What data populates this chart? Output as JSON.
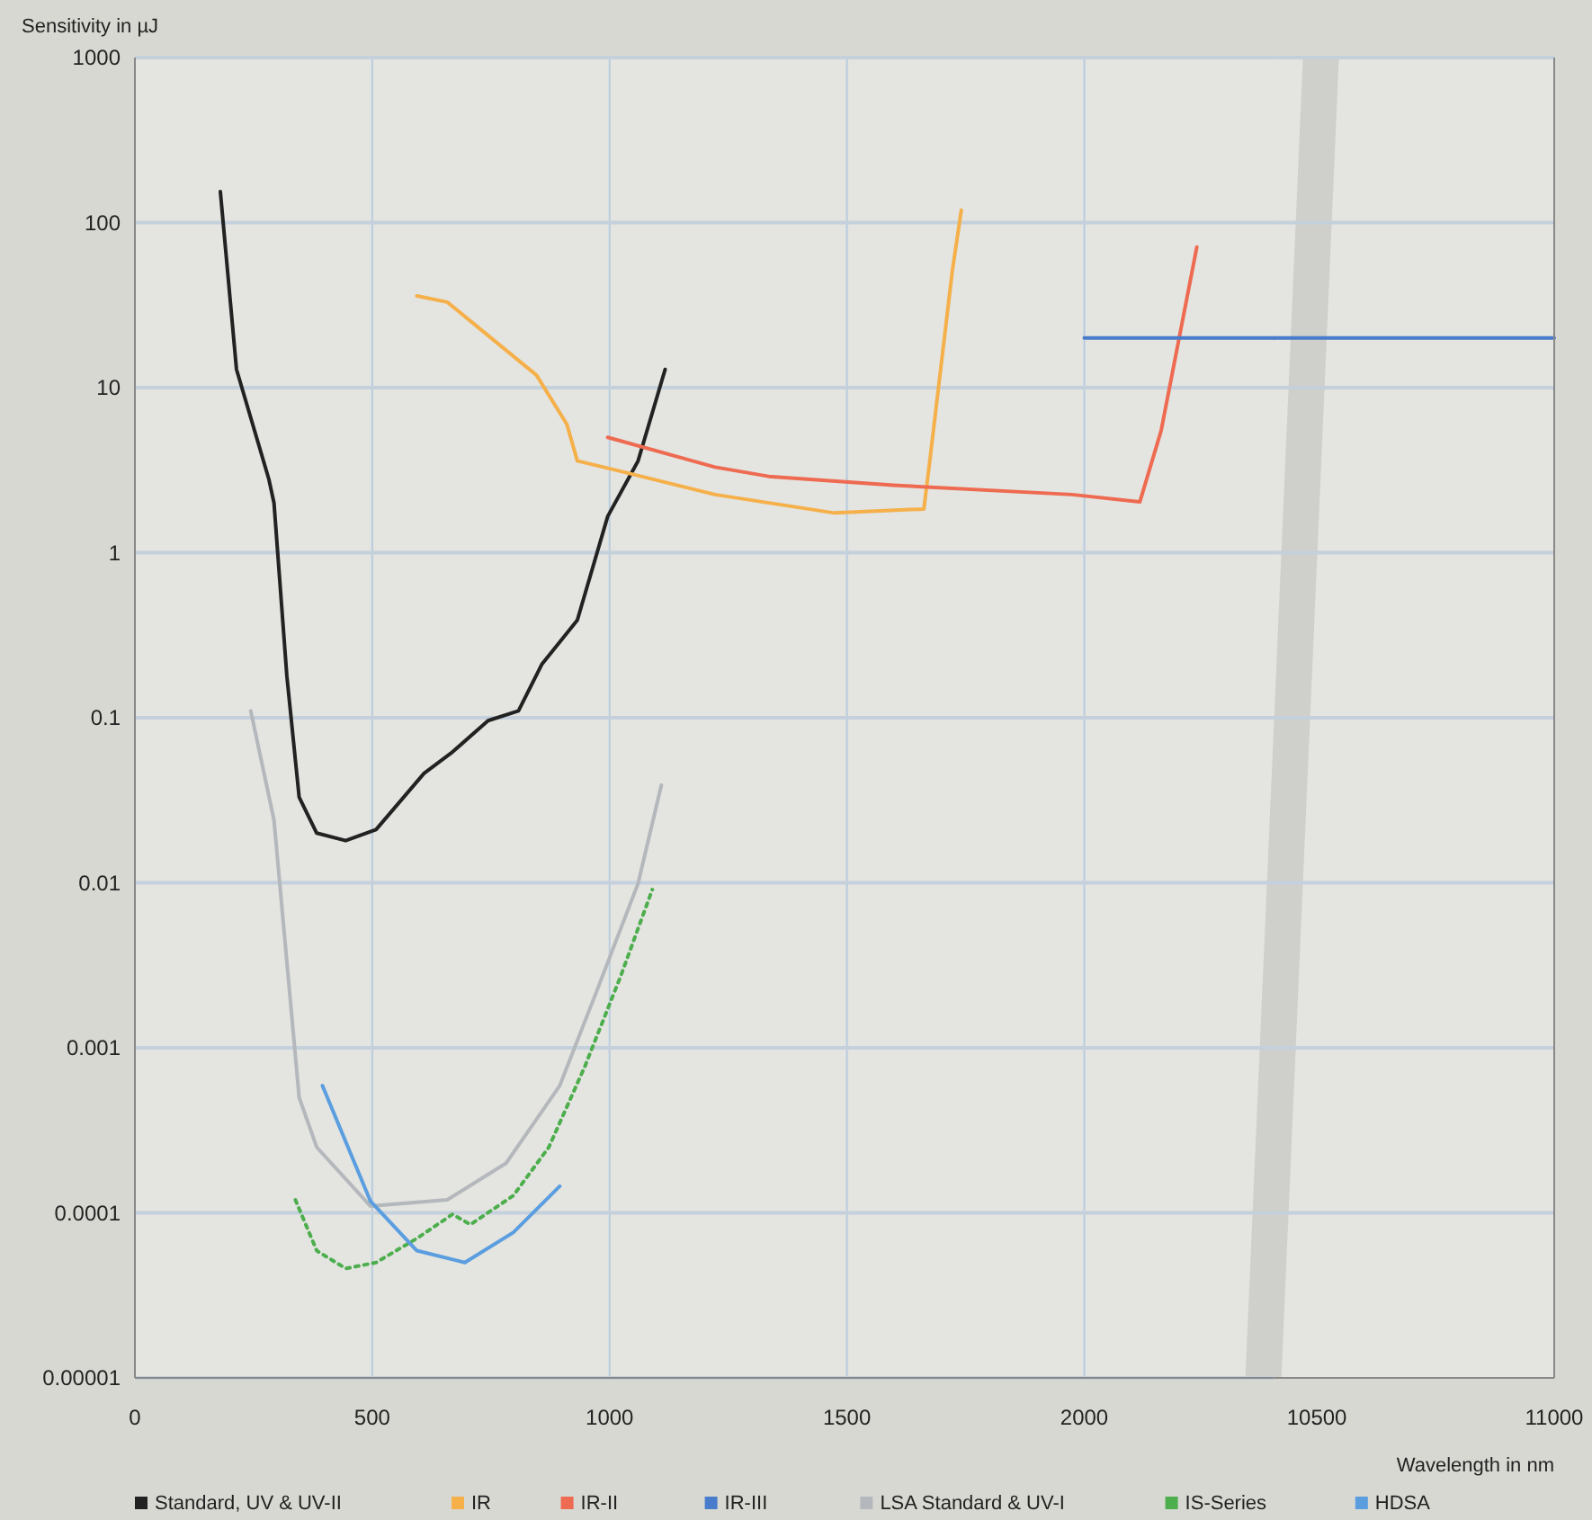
{
  "chart_data": [
    {
      "type": "line",
      "ylabel": "Sensitivity in µJ",
      "log": "y",
      "grid": true,
      "legend": "bottom",
      "marker": "none",
      "xlim": [
        0,
        2400
      ],
      "xticks": [
        0,
        500,
        1000,
        1500,
        2000
      ],
      "ylim": [
        1e-05,
        1000
      ],
      "yticks": [
        {
          "value": 1e-05,
          "label": "0.00001"
        },
        0.0001,
        0.001,
        0.01,
        0.1,
        1,
        10,
        100,
        1000
      ],
      "series": [
        {
          "name": "Standard, UV & UV-II",
          "color": "#222222",
          "x": [
            180,
            214,
            282,
            293,
            320,
            346,
            383,
            444,
            508,
            609,
            669,
            744,
            808,
            857,
            932,
            996,
            1060,
            1117
          ],
          "values": [
            154,
            12.9,
            2.8,
            2.0,
            0.18,
            0.033,
            0.02,
            0.018,
            0.021,
            0.046,
            0.062,
            0.096,
            0.11,
            0.21,
            0.39,
            1.66,
            3.6,
            12.9
          ]
        },
        {
          "name": "IR",
          "color": "#f5b04a",
          "x": [
            594,
            658,
            846,
            910,
            932,
            1034,
            1222,
            1474,
            1662,
            1673,
            1722,
            1741
          ],
          "values": [
            36,
            33,
            11.9,
            6.0,
            3.6,
            3.06,
            2.25,
            1.74,
            1.84,
            3.3,
            51,
            119
          ]
        },
        {
          "name": "IR-II",
          "color": "#ee6a50",
          "x": [
            996,
            1222,
            1335,
            1598,
            1974,
            2117,
            2162,
            2237
          ],
          "values": [
            5.0,
            3.3,
            2.9,
            2.56,
            2.25,
            2.03,
            5.5,
            71
          ]
        },
        {
          "name": "IR-III",
          "color": "#4a7ccc",
          "x": [
            2000,
            2400
          ],
          "values": [
            20,
            20
          ]
        },
        {
          "name": "LSA Standard & UV-I",
          "color": "#b4b8bc",
          "x": [
            244,
            293,
            346,
            383,
            496,
            658,
            782,
            895,
            970,
            1060,
            1109
          ],
          "values": [
            0.11,
            0.024,
            0.0005,
            0.00025,
            0.00011,
            0.00012,
            0.0002,
            0.00059,
            0.0021,
            0.0099,
            0.039
          ]
        },
        {
          "name": "IS-Series",
          "color": "#4cae4c",
          "line_style": "dotted",
          "x": [
            338,
            383,
            444,
            508,
            594,
            669,
            707,
            797,
            872,
            947,
            1023,
            1090
          ],
          "values": [
            0.00012,
            5.9e-05,
            4.6e-05,
            5e-05,
            7e-05,
            9.8e-05,
            8.5e-05,
            0.000127,
            0.00025,
            0.00076,
            0.0027,
            0.0091
          ]
        },
        {
          "name": "HDSA",
          "color": "#5a9ee0",
          "x": [
            395,
            496,
            594,
            695,
            797,
            895
          ],
          "values": [
            0.00059,
            0.000118,
            5.9e-05,
            5e-05,
            7.6e-05,
            0.000145
          ]
        }
      ]
    },
    {
      "type": "line",
      "xlabel": "Wavelength in nm",
      "log": "y",
      "grid": "y",
      "tick_labels": "x",
      "marker": "none",
      "xlim": [
        10410,
        11000
      ],
      "xticks": [
        10500,
        11000
      ],
      "ylim": [
        1e-05,
        1000
      ],
      "yticks": [
        0.0001,
        0.001,
        0.01,
        0.1,
        1,
        10,
        100,
        1000
      ],
      "series": [
        {
          "color": "#4a7ccc",
          "x": [
            10410,
            11000
          ],
          "values": [
            20,
            20
          ]
        }
      ]
    }
  ]
}
